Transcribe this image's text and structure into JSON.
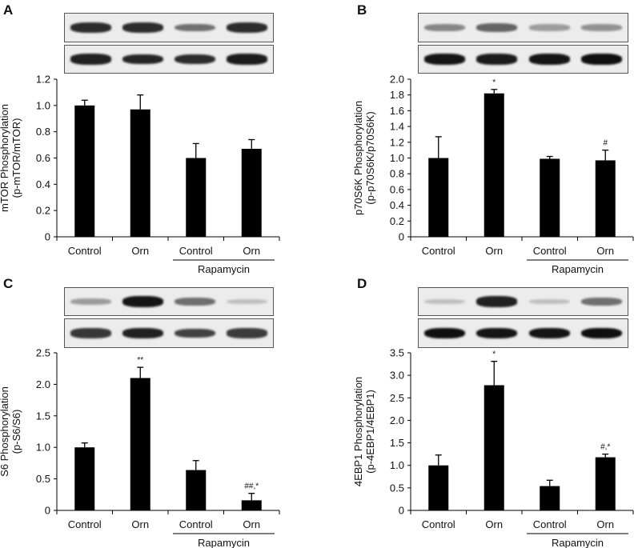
{
  "figure": {
    "panels": [
      {
        "letter": "A"
      },
      {
        "letter": "B"
      },
      {
        "letter": "C"
      },
      {
        "letter": "D"
      }
    ]
  },
  "chart_data": [
    {
      "panel": "A",
      "type": "bar",
      "title": "",
      "categories": [
        "Control",
        "Orn",
        "Control",
        "Orn"
      ],
      "group_label": "Rapamycin",
      "group_span": [
        2,
        3
      ],
      "values": [
        1.0,
        0.97,
        0.6,
        0.67
      ],
      "errors": [
        0.04,
        0.11,
        0.11,
        0.07
      ],
      "annotations": [
        "",
        "",
        "",
        ""
      ],
      "ylabel_line1": "mTOR Phosphorylation",
      "ylabel_line2": "(p-mTOR/mTOR)",
      "xlabel": "",
      "ylim": [
        0,
        1.2
      ],
      "yticks": [
        "0",
        "0.2",
        "0.4",
        "0.6",
        "0.8",
        "1.0",
        "1.2"
      ],
      "grid": false,
      "blots": {
        "top": [
          0.85,
          0.85,
          0.55,
          0.85
        ],
        "bottom": [
          0.9,
          0.88,
          0.85,
          0.92
        ]
      }
    },
    {
      "panel": "B",
      "type": "bar",
      "title": "",
      "categories": [
        "Control",
        "Orn",
        "Control",
        "Orn"
      ],
      "group_label": "Rapamycin",
      "group_span": [
        2,
        3
      ],
      "values": [
        1.0,
        1.82,
        0.99,
        0.97
      ],
      "errors": [
        0.27,
        0.05,
        0.03,
        0.13
      ],
      "annotations": [
        "",
        "*",
        "",
        "#"
      ],
      "ylabel_line1": "p70S6K Phosphorylation",
      "ylabel_line2": "(p-p70S6K/p70S6K)",
      "xlabel": "",
      "ylim": [
        0,
        2.0
      ],
      "yticks": [
        "0",
        "0.2",
        "0.4",
        "0.6",
        "0.8",
        "1.0",
        "1.2",
        "1.4",
        "1.6",
        "1.8",
        "2.0"
      ],
      "grid": false,
      "blots": {
        "top": [
          0.45,
          0.6,
          0.35,
          0.4
        ],
        "bottom": [
          0.95,
          0.92,
          0.95,
          0.98
        ]
      }
    },
    {
      "panel": "C",
      "type": "bar",
      "title": "",
      "categories": [
        "Control",
        "Orn",
        "Control",
        "Orn"
      ],
      "group_label": "Rapamycin",
      "group_span": [
        2,
        3
      ],
      "values": [
        1.0,
        2.1,
        0.64,
        0.16
      ],
      "errors": [
        0.07,
        0.17,
        0.15,
        0.11
      ],
      "annotations": [
        "",
        "**",
        "",
        "##,*"
      ],
      "ylabel_line1": "S6 Phosphorylation",
      "ylabel_line2": "(p-S6/S6)",
      "xlabel": "",
      "ylim": [
        0,
        2.5
      ],
      "yticks": [
        "0",
        "0.5",
        "1.0",
        "1.5",
        "2.0",
        "2.5"
      ],
      "grid": false,
      "blots": {
        "top": [
          0.35,
          0.95,
          0.55,
          0.2
        ],
        "bottom": [
          0.8,
          0.9,
          0.75,
          0.78
        ]
      }
    },
    {
      "panel": "D",
      "type": "bar",
      "title": "",
      "categories": [
        "Control",
        "Orn",
        "Control",
        "Orn"
      ],
      "group_label": "Rapamycin",
      "group_span": [
        2,
        3
      ],
      "values": [
        1.0,
        2.78,
        0.54,
        1.18
      ],
      "errors": [
        0.23,
        0.53,
        0.13,
        0.07
      ],
      "annotations": [
        "",
        "*",
        "",
        "#,*"
      ],
      "ylabel_line1": "4EBP1 Phosphorylation",
      "ylabel_line2": "(p-4EBP1/4EBP1)",
      "xlabel": "",
      "ylim": [
        0,
        3.5
      ],
      "yticks": [
        "0",
        "0.5",
        "1.0",
        "1.5",
        "2.0",
        "2.5",
        "3.0",
        "3.5"
      ],
      "grid": false,
      "blots": {
        "top": [
          0.2,
          0.9,
          0.2,
          0.55
        ],
        "bottom": [
          0.98,
          0.95,
          0.95,
          0.98
        ]
      }
    }
  ],
  "colors": {
    "bar": "#000000",
    "axis": "#000000",
    "blot_bg": "#ececec",
    "band": "#111111"
  }
}
